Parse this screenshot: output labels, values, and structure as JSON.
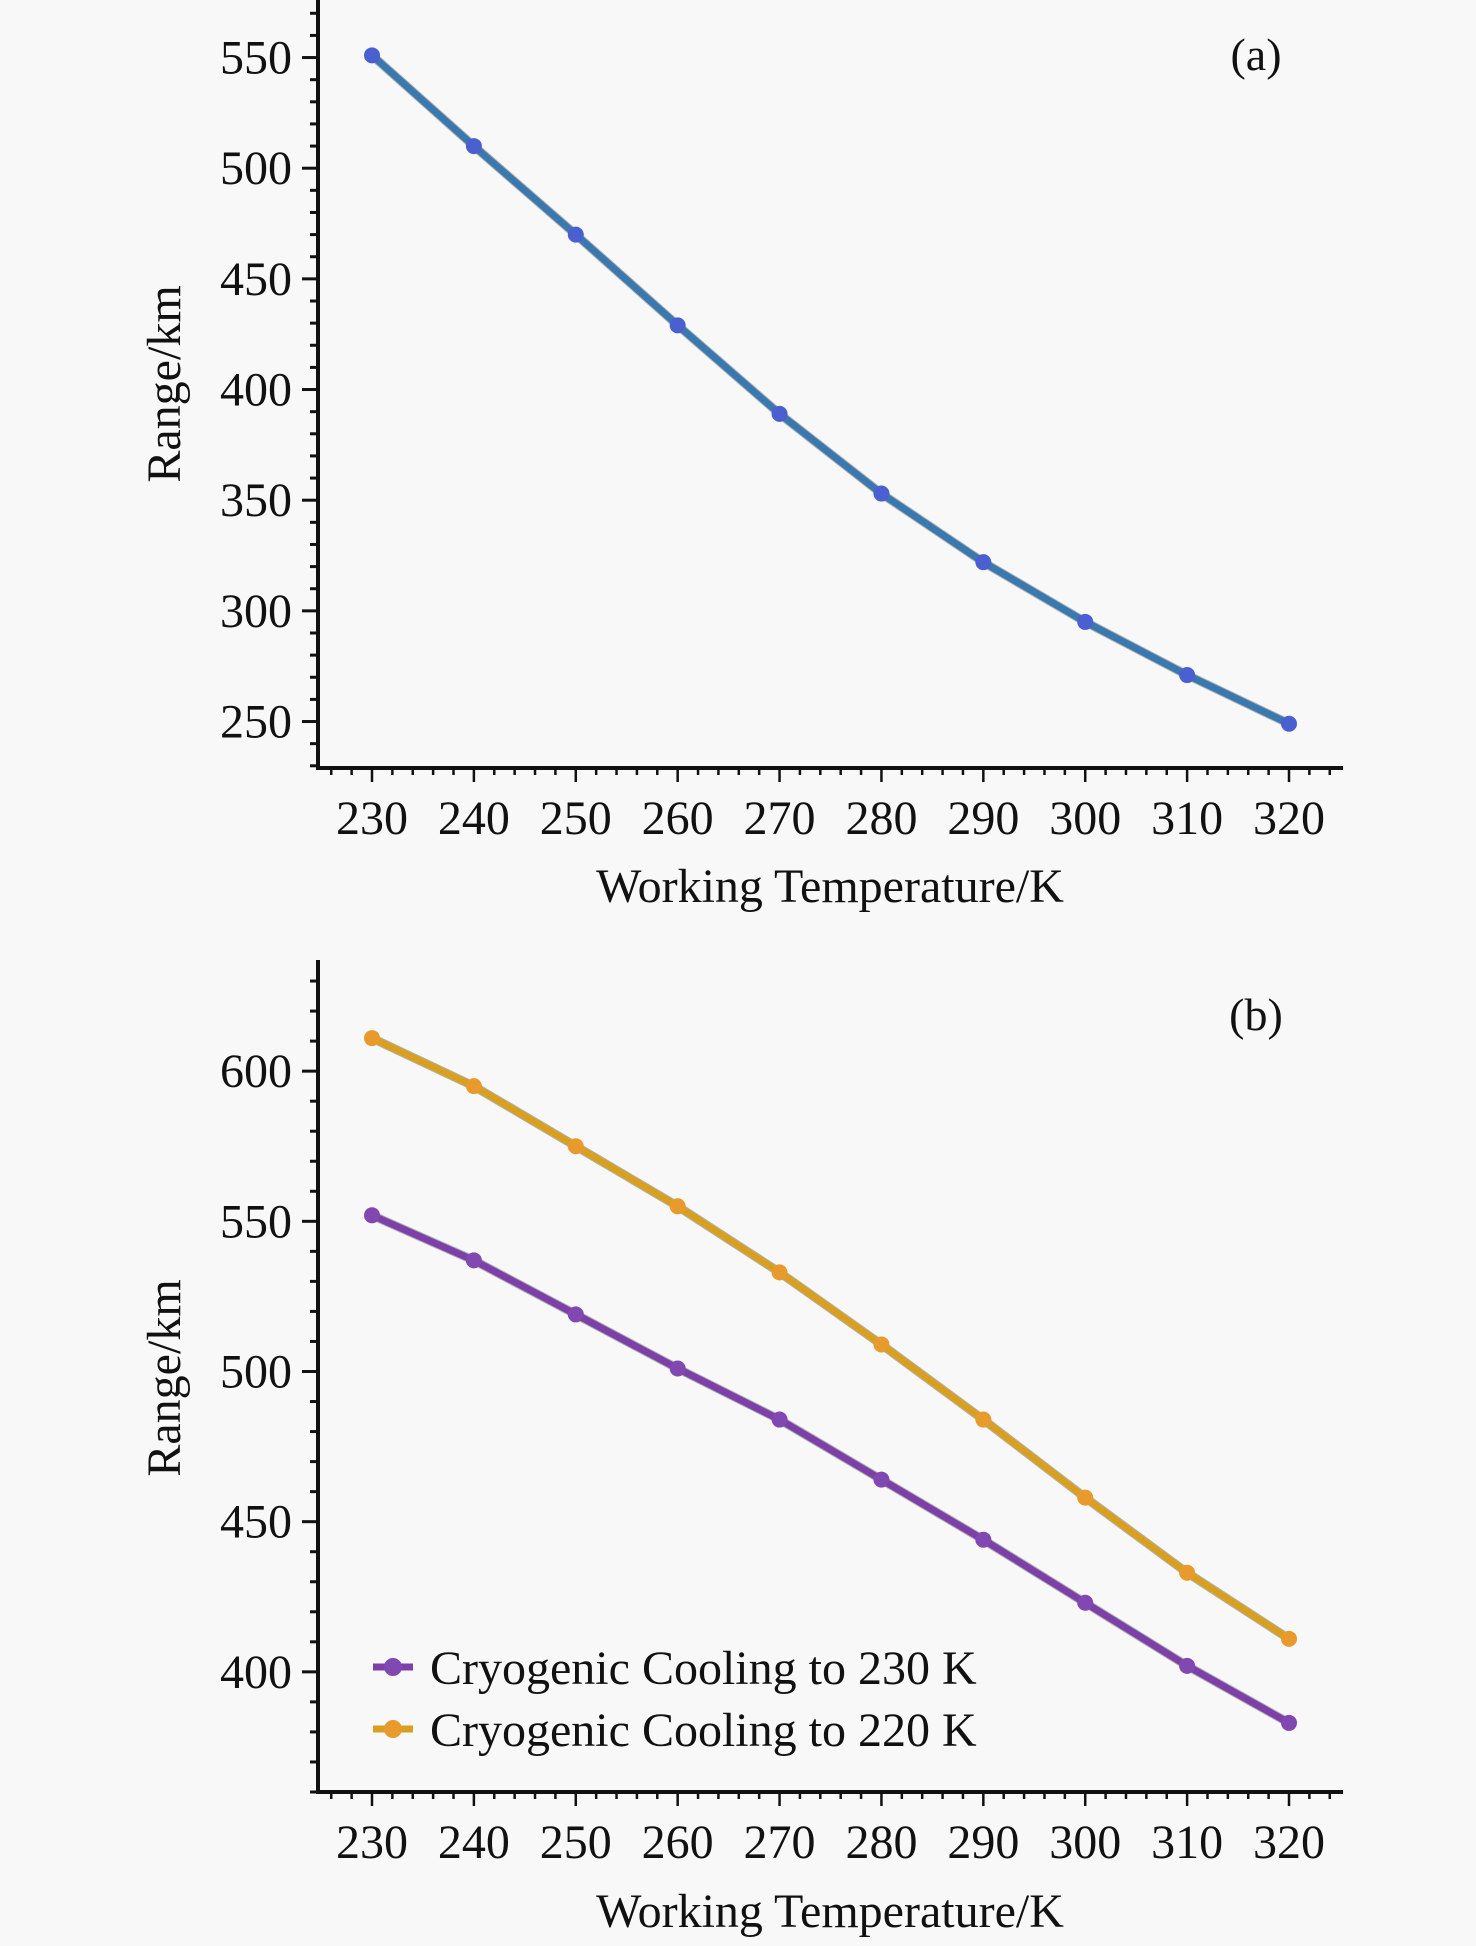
{
  "chart_data": [
    {
      "type": "line",
      "panel_label": "(a)",
      "title": "",
      "xlabel": "Working Temperature/K",
      "ylabel": "Range/km",
      "x": [
        230,
        240,
        250,
        260,
        270,
        280,
        290,
        300,
        310,
        320
      ],
      "xticks": [
        230,
        240,
        250,
        260,
        270,
        280,
        290,
        300,
        310,
        320
      ],
      "yticks": [
        250,
        300,
        350,
        400,
        450,
        500,
        550
      ],
      "xlim": [
        224.7,
        325.3
      ],
      "ylim": [
        229,
        576
      ],
      "grid": false,
      "legend": null,
      "series": [
        {
          "name": "Range",
          "color": "#3a78b0",
          "marker_color": "#4a5fd0",
          "values": [
            551,
            510,
            470,
            429,
            389,
            353,
            322,
            295,
            271,
            249
          ]
        }
      ]
    },
    {
      "type": "line",
      "panel_label": "(b)",
      "title": "",
      "xlabel": "Working Temperature/K",
      "ylabel": "Range/km",
      "x": [
        230,
        240,
        250,
        260,
        270,
        280,
        290,
        300,
        310,
        320
      ],
      "xticks": [
        230,
        240,
        250,
        260,
        270,
        280,
        290,
        300,
        310,
        320
      ],
      "yticks": [
        400,
        450,
        500,
        550,
        600
      ],
      "xlim": [
        224.7,
        325.3
      ],
      "ylim": [
        360,
        637
      ],
      "grid": false,
      "legend": "bottom-left",
      "series": [
        {
          "name": "Cryogenic Cooling to 230 K",
          "color": "#7d3fa8",
          "marker_color": "#8048b0",
          "values": [
            552,
            537,
            519,
            501,
            484,
            464,
            444,
            423,
            402,
            383
          ]
        },
        {
          "name": "Cryogenic Cooling to 220 K",
          "color": "#d9a020",
          "marker_color": "#e89a2c",
          "values": [
            611,
            595,
            575,
            555,
            533,
            509,
            484,
            458,
            433,
            411
          ]
        }
      ]
    }
  ]
}
